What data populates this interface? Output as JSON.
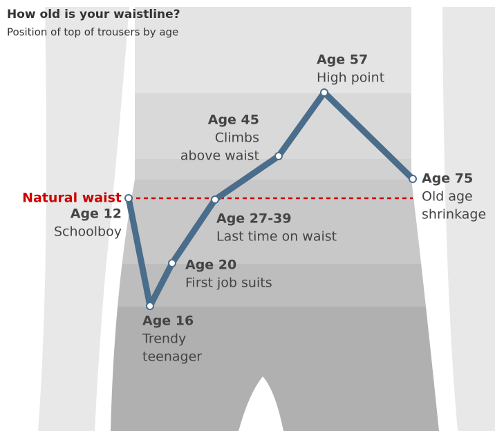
{
  "title": "How old is your waistline?",
  "subtitle": "Position of top of trousers by age",
  "reference_label": "Natural waist",
  "nodes": [
    {
      "age": "Age 12",
      "note": [
        "Schoolboy"
      ]
    },
    {
      "age": "Age 16",
      "note": [
        "Trendy",
        "teenager"
      ]
    },
    {
      "age": "Age 20",
      "note": [
        "First job suits"
      ]
    },
    {
      "age": "Age 27-39",
      "note": [
        "Last time on waist"
      ]
    },
    {
      "age": "Age 45",
      "note": [
        "Climbs",
        "above waist"
      ]
    },
    {
      "age": "Age 57",
      "note": [
        "High point"
      ]
    },
    {
      "age": "Age 75",
      "note": [
        "Old age",
        "shrinkage"
      ]
    }
  ]
}
